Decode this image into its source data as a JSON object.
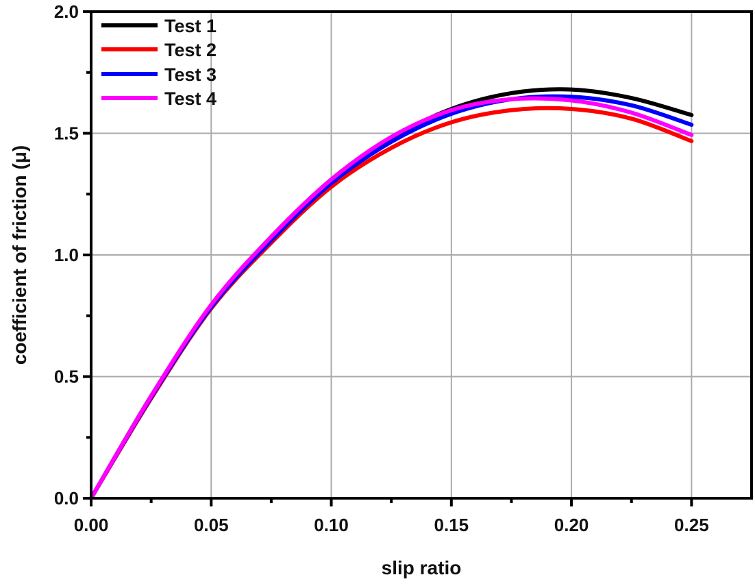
{
  "chart_data": {
    "type": "line",
    "title": "",
    "xlabel": "slip ratio",
    "ylabel": "coefficient of friction (μ)",
    "xlim": [
      0,
      0.275
    ],
    "ylim": [
      0,
      2.0
    ],
    "xticks": [
      "0.00",
      "0.05",
      "0.10",
      "0.15",
      "0.20",
      "0.25"
    ],
    "xtick_values": [
      0,
      0.05,
      0.1,
      0.15,
      0.2,
      0.25
    ],
    "yticks": [
      "0.0",
      "0.5",
      "1.0",
      "1.5",
      "2.0"
    ],
    "ytick_values": [
      0,
      0.5,
      1.0,
      1.5,
      2.0
    ],
    "grid": true,
    "legend_position": "top-left",
    "x": [
      0,
      0.025,
      0.05,
      0.075,
      0.1,
      0.125,
      0.15,
      0.175,
      0.2,
      0.225,
      0.25
    ],
    "series": [
      {
        "name": "Test 1",
        "color": "#000000",
        "values": [
          0,
          0.42,
          0.79,
          1.07,
          1.31,
          1.48,
          1.6,
          1.665,
          1.68,
          1.645,
          1.575
        ]
      },
      {
        "name": "Test 2",
        "color": "#ff0000",
        "values": [
          0,
          0.41,
          0.78,
          1.05,
          1.28,
          1.44,
          1.545,
          1.595,
          1.6,
          1.56,
          1.468
        ]
      },
      {
        "name": "Test 3",
        "color": "#0000ff",
        "values": [
          0,
          0.415,
          0.785,
          1.06,
          1.295,
          1.465,
          1.58,
          1.64,
          1.65,
          1.615,
          1.535
        ]
      },
      {
        "name": "Test 4",
        "color": "#ff00ff",
        "values": [
          0,
          0.42,
          0.795,
          1.075,
          1.31,
          1.485,
          1.595,
          1.64,
          1.635,
          1.585,
          1.493
        ]
      }
    ]
  }
}
